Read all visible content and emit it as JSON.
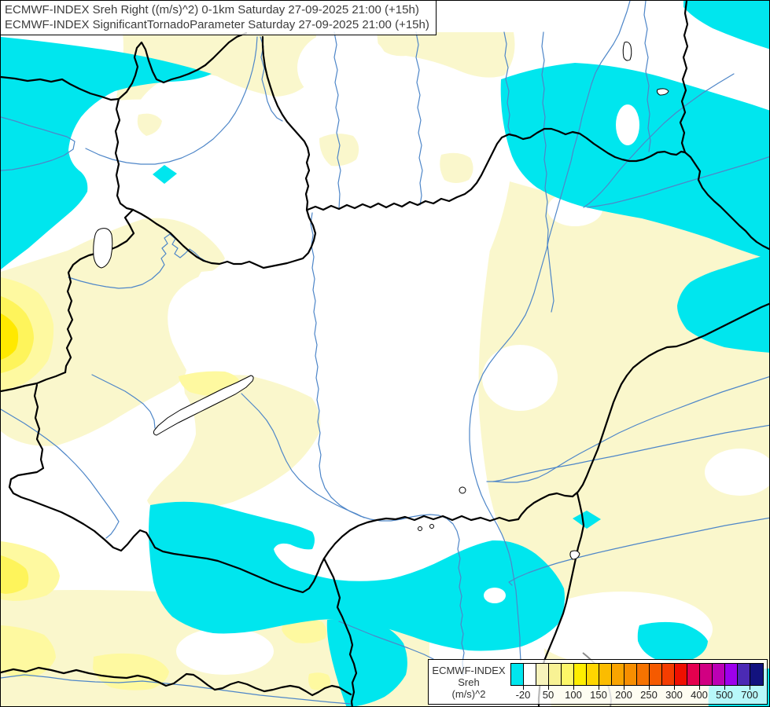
{
  "title_box": {
    "line1": "ECMWF-INDEX Sreh Right ((m/s)^2) 0-1km Saturday 27-09-2025 21:00 (+15h)",
    "line2": "ECMWF-INDEX SignificantTornadoParameter Saturday 27-09-2025 21:00 (+15h)"
  },
  "legend": {
    "model_label": "ECMWF-INDEX",
    "parameter_label": "Sreh",
    "units_label": "(m/s)^2",
    "tick_labels": [
      "-20",
      "50",
      "100",
      "150",
      "200",
      "250",
      "300",
      "400",
      "500",
      "700"
    ],
    "cell_colors": [
      "#00E6EE",
      "#FFFFFF",
      "#F7F3BC",
      "#F8F294",
      "#FDF768",
      "#FFEE00",
      "#FFD600",
      "#FBBC00",
      "#F9A400",
      "#F78E00",
      "#F67300",
      "#F55A00",
      "#F43D00",
      "#EF1000",
      "#E4004E",
      "#D10082",
      "#BC00B4",
      "#9D00EC",
      "#4B2AB4",
      "#12127E"
    ]
  },
  "map": {
    "palette": {
      "cyan": "#00E6EE",
      "cream": "#FAF7CC",
      "yellow_light": "#FEF9A0",
      "yellow_mid": "#FEF45B",
      "yellow_bright": "#FFE900",
      "map_white": "#FFFFFF",
      "river": "#4E86C8",
      "border_line": "#000000",
      "gray_line": "#8A8A8A"
    }
  }
}
